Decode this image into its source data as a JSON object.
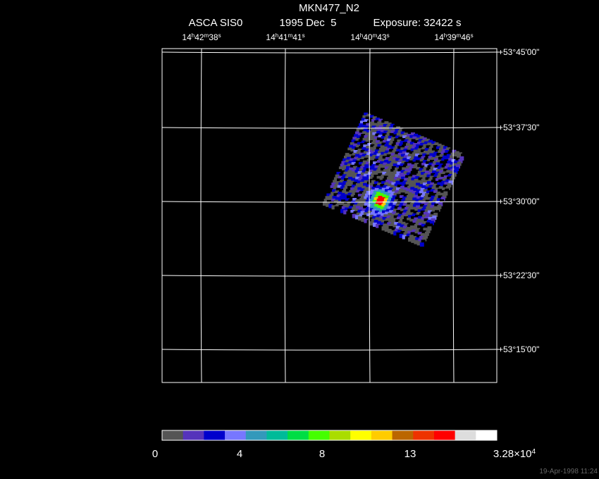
{
  "title": "MKN477_N2",
  "subtitle": {
    "instrument": "ASCA SIS0",
    "date": "1995 Dec  5",
    "exposure": "Exposure: 32422 s"
  },
  "ra_ticks": [
    [
      [
        "14",
        "h"
      ],
      [
        "42",
        "m"
      ],
      [
        "38",
        "s"
      ]
    ],
    [
      [
        "14",
        "h"
      ],
      [
        "41",
        "m"
      ],
      [
        "41",
        "s"
      ]
    ],
    [
      [
        "14",
        "h"
      ],
      [
        "40",
        "m"
      ],
      [
        "43",
        "s"
      ]
    ],
    [
      [
        "14",
        "h"
      ],
      [
        "39",
        "m"
      ],
      [
        "46",
        "s"
      ]
    ]
  ],
  "dec_ticks": [
    "+53°45'00\"",
    "+53°37'30\"",
    "+53°30'00\"",
    "+53°22'30\"",
    "+53°15'00\""
  ],
  "colorbar": {
    "colors": [
      "#555555",
      "#5533bb",
      "#0000cc",
      "#7777ff",
      "#3399bb",
      "#00bb99",
      "#00dd44",
      "#44ff00",
      "#aadd00",
      "#ffff00",
      "#ffcc00",
      "#bb6600",
      "#ee3300",
      "#ff0000",
      "#dddddd",
      "#ffffff"
    ],
    "labels": [
      "0",
      "4",
      "8",
      "13"
    ],
    "max": {
      "mantissa": "3.28×10",
      "exponent": "4"
    }
  },
  "timestamp": "19-Apr-1998 11:24"
}
